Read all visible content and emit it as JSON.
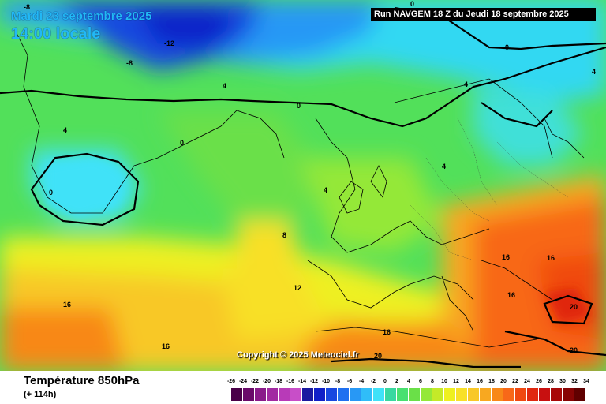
{
  "header": {
    "date_line": "Mardi 23 septembre 2025",
    "time_line": "14:00 locale",
    "run_line": "Run NAVGEM 18 Z du Jeudi 18 septembre 2025"
  },
  "map": {
    "copyright": "Copyright © 2025 Meteociel.fr",
    "contour_labels": [
      "-8",
      "-12",
      "-8",
      "0",
      "0",
      "4",
      "4",
      "0",
      "4",
      "4",
      "0",
      "4",
      "0",
      "8",
      "12",
      "16",
      "16",
      "16",
      "16",
      "16",
      "16",
      "20",
      "20",
      "20"
    ]
  },
  "footer": {
    "variable": "Température 850hPa",
    "lead_time": "(+ 114h)"
  },
  "legend": {
    "values": [
      "-26",
      "-24",
      "-22",
      "-20",
      "-18",
      "-16",
      "-14",
      "-12",
      "-10",
      "-8",
      "-6",
      "-4",
      "-2",
      "0",
      "2",
      "4",
      "6",
      "8",
      "10",
      "12",
      "14",
      "16",
      "18",
      "20",
      "22",
      "24",
      "26",
      "28",
      "30",
      "32",
      "34"
    ],
    "colors": [
      "#4a0048",
      "#6a0a6a",
      "#8a1a8a",
      "#a22aa2",
      "#b83ab8",
      "#c84ec8",
      "#1a1aa0",
      "#1020c8",
      "#1848e0",
      "#2070f0",
      "#2898f5",
      "#30bdf8",
      "#40e2f8",
      "#38d8a0",
      "#48e070",
      "#6ae048",
      "#94e838",
      "#c4ea28",
      "#eef020",
      "#f8e028",
      "#f8c828",
      "#f8a820",
      "#f88818",
      "#f86818",
      "#f04810",
      "#e02810",
      "#c81010",
      "#a80808",
      "#880404",
      "#600000"
    ]
  }
}
